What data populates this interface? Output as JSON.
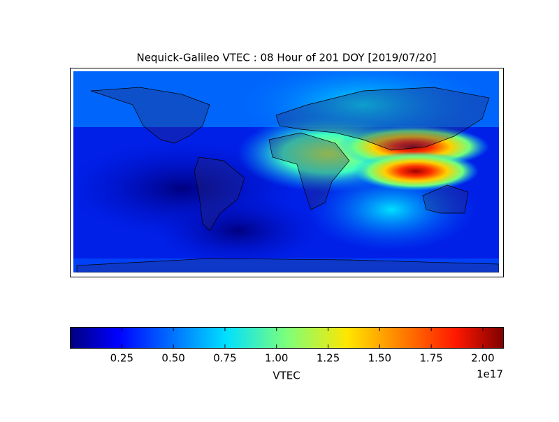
{
  "title": "Nequick-Galileo VTEC : 08 Hour of 201 DOY [2019/07/20]",
  "colorbar": {
    "label": "VTEC",
    "offset_label": "1e17",
    "colormap": "jet",
    "range": [
      0,
      2.1
    ],
    "ticks": [
      0.25,
      {
        "value": 0.5,
        "label": "0.50"
      },
      0.75,
      {
        "value": 1.0,
        "label": "1.00"
      },
      1.25,
      {
        "value": 1.5,
        "label": "1.50"
      },
      1.75,
      {
        "value": 2.0,
        "label": "2.00"
      }
    ]
  }
}
